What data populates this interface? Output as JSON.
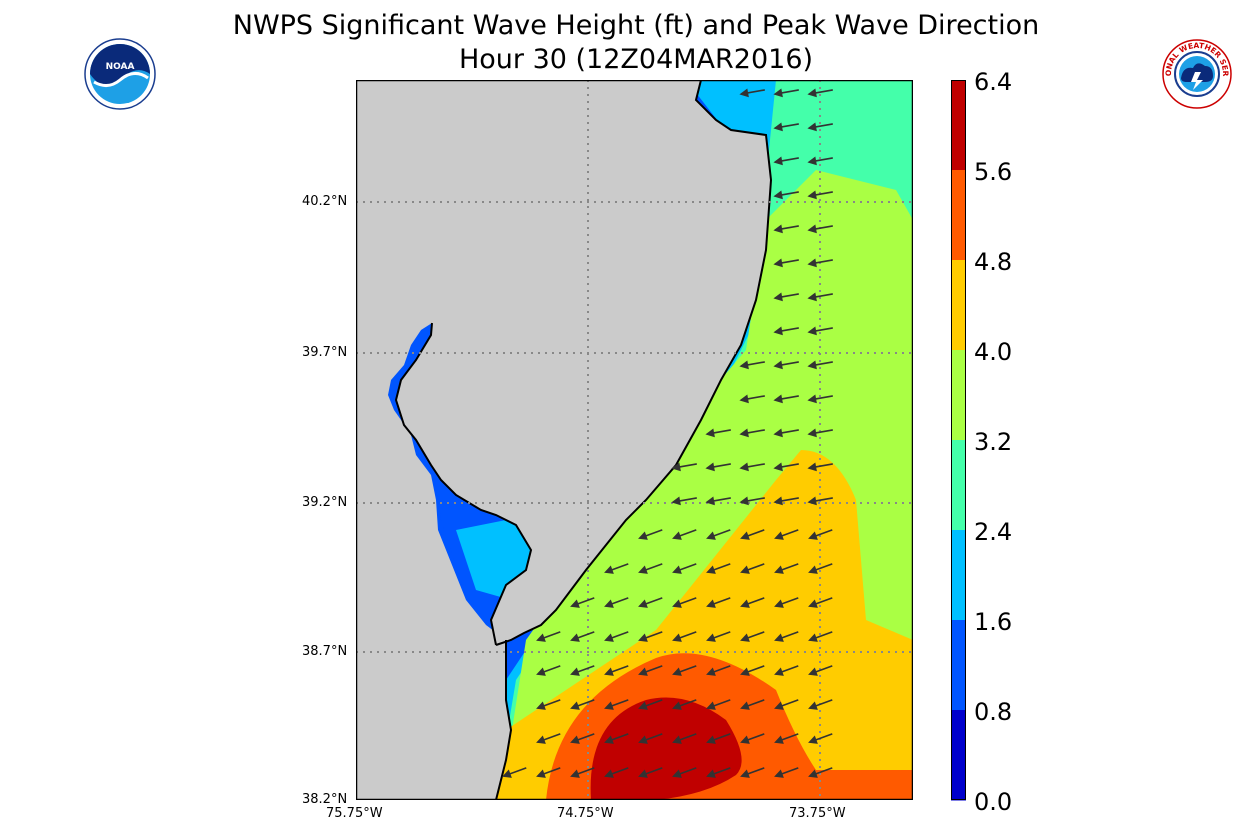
{
  "title": {
    "line1": "NWPS Significant Wave Height (ft) and Peak Wave Direction",
    "line2": "Hour 30 (12Z04MAR2016)"
  },
  "logos": {
    "left": {
      "name": "noaa-logo",
      "text": "NOAA"
    },
    "right": {
      "name": "nws-logo",
      "text": "NATIONAL WEATHER SERVICE"
    }
  },
  "map": {
    "lat_labels": [
      "40.2°N",
      "39.7°N",
      "39.2°N",
      "38.7°N",
      "38.2°N"
    ],
    "lon_labels": [
      "75.75°W",
      "74.75°W",
      "73.75°W"
    ],
    "land_color": "#cbcbcb",
    "grid": "dotted",
    "arrow_direction": "toward west-southwest (waves moving from east-northeast)"
  },
  "colorbar": {
    "labels": [
      "6.4",
      "5.6",
      "4.8",
      "4.0",
      "3.2",
      "2.4",
      "1.6",
      "0.8",
      "0.0"
    ],
    "colors": [
      "#c00000",
      "#ff5a00",
      "#ffcc00",
      "#aaff44",
      "#44ffaa",
      "#00c0ff",
      "#0055ff",
      "#0000cc"
    ]
  }
}
